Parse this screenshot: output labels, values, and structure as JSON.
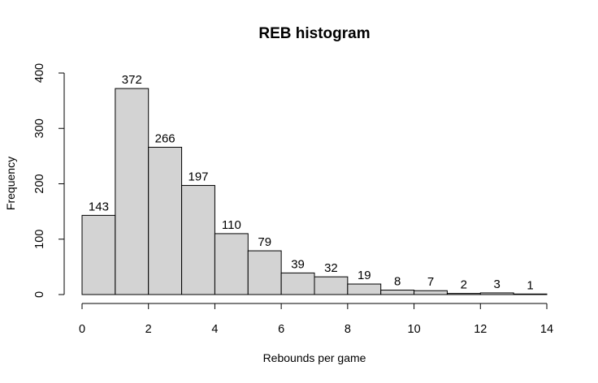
{
  "chart_data": {
    "type": "bar",
    "title": "REB histogram",
    "xlabel": "Rebounds per game",
    "ylabel": "Frequency",
    "bins": [
      {
        "from": 0,
        "to": 1,
        "count": 143
      },
      {
        "from": 1,
        "to": 2,
        "count": 372
      },
      {
        "from": 2,
        "to": 3,
        "count": 266
      },
      {
        "from": 3,
        "to": 4,
        "count": 197
      },
      {
        "from": 4,
        "to": 5,
        "count": 110
      },
      {
        "from": 5,
        "to": 6,
        "count": 79
      },
      {
        "from": 6,
        "to": 7,
        "count": 39
      },
      {
        "from": 7,
        "to": 8,
        "count": 32
      },
      {
        "from": 8,
        "to": 9,
        "count": 19
      },
      {
        "from": 9,
        "to": 10,
        "count": 8
      },
      {
        "from": 10,
        "to": 11,
        "count": 7
      },
      {
        "from": 11,
        "to": 12,
        "count": 2
      },
      {
        "from": 12,
        "to": 13,
        "count": 3
      },
      {
        "from": 13,
        "to": 14,
        "count": 1
      }
    ],
    "xlim": [
      0,
      14
    ],
    "ylim": [
      0,
      400
    ],
    "x_ticks": [
      0,
      2,
      4,
      6,
      8,
      10,
      12,
      14
    ],
    "y_ticks": [
      0,
      100,
      200,
      300,
      400
    ],
    "grid": false,
    "legend": "none",
    "colors": {
      "bar_fill": "#d3d3d3",
      "bar_stroke": "#000000",
      "axis": "#000000"
    }
  }
}
